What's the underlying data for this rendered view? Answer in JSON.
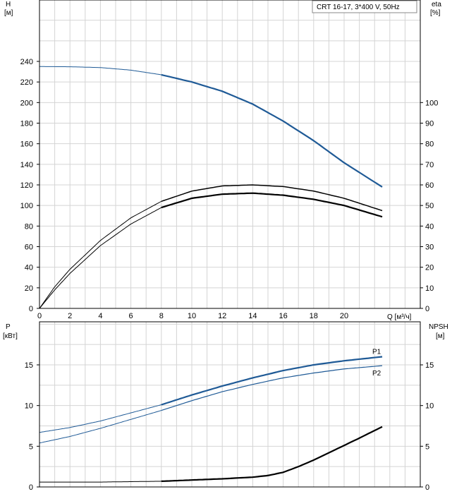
{
  "chart_data": [
    {
      "type": "line",
      "title": "CRT 16-17, 3*400 V, 50Hz",
      "ylabel_left": "H",
      "ylabel_left_unit": "[м]",
      "ylabel_right": "eta",
      "ylabel_right_unit": "[%]",
      "xlabel": "Q [м³/ч]",
      "xlim": [
        0,
        25
      ],
      "ylim_left": [
        0,
        240
      ],
      "ylim_right": [
        0,
        100
      ],
      "x_ticks": [
        0,
        2,
        4,
        6,
        8,
        10,
        12,
        14,
        16,
        18,
        20
      ],
      "y_ticks_left": [
        0,
        20,
        40,
        60,
        80,
        100,
        120,
        140,
        160,
        180,
        200,
        220,
        240
      ],
      "y_ticks_right": [
        0,
        10,
        20,
        30,
        40,
        50,
        60,
        70,
        80,
        90,
        100
      ],
      "grid": true,
      "series": [
        {
          "axis": "left",
          "color": "#1f5a96",
          "x": [
            0,
            2,
            4,
            6,
            8,
            10,
            12,
            14,
            16,
            18,
            20,
            22.5
          ],
          "y": [
            235,
            234.8,
            234,
            231.5,
            227,
            220,
            211,
            198.5,
            182,
            163,
            141.5,
            118
          ]
        },
        {
          "axis": "right",
          "color": "#000000",
          "x": [
            0,
            1,
            2,
            4,
            6,
            8,
            10,
            12,
            14,
            16,
            18,
            20,
            22.5
          ],
          "y": [
            0,
            10.5,
            19,
            33,
            44,
            52,
            57,
            59.5,
            60,
            59.2,
            57,
            53.5,
            47.5
          ]
        },
        {
          "axis": "right",
          "color": "#000000",
          "x": [
            0,
            1,
            2,
            4,
            6,
            8,
            10,
            12,
            14,
            16,
            18,
            20,
            22.5
          ],
          "y": [
            0,
            9,
            17,
            30.5,
            41,
            49,
            53.5,
            55.5,
            56,
            55,
            53,
            50,
            44.5
          ]
        }
      ]
    },
    {
      "type": "line",
      "ylabel_left": "P",
      "ylabel_left_unit": "[кВт]",
      "ylabel_right": "NPSH",
      "ylabel_right_unit": "[м]",
      "xlim": [
        0,
        25
      ],
      "ylim_left": [
        0,
        20
      ],
      "ylim_right": [
        0,
        20
      ],
      "y_ticks_left": [
        0,
        5,
        10,
        15
      ],
      "y_ticks_right": [
        0,
        5,
        10,
        15
      ],
      "grid": true,
      "series": [
        {
          "name": "P1",
          "axis": "left",
          "color": "#1f5a96",
          "x": [
            0,
            2,
            4,
            6,
            8,
            10,
            12,
            14,
            16,
            18,
            20,
            22.5
          ],
          "y": [
            6.7,
            7.3,
            8.1,
            9.1,
            10.1,
            11.3,
            12.4,
            13.4,
            14.3,
            15,
            15.5,
            16
          ]
        },
        {
          "name": "P2",
          "axis": "left",
          "color": "#1f5a96",
          "x": [
            0,
            2,
            4,
            6,
            8,
            10,
            12,
            14,
            16,
            18,
            20,
            22.5
          ],
          "y": [
            5.4,
            6.2,
            7.2,
            8.3,
            9.4,
            10.6,
            11.7,
            12.6,
            13.4,
            14,
            14.5,
            14.9
          ]
        },
        {
          "axis": "right",
          "color": "#000000",
          "x": [
            0,
            4,
            8,
            12,
            14,
            15,
            16,
            17,
            18,
            19,
            20,
            21,
            22.5
          ],
          "y": [
            0.6,
            0.6,
            0.7,
            1,
            1.2,
            1.4,
            1.8,
            2.5,
            3.3,
            4.2,
            5.1,
            6,
            7.4
          ]
        }
      ]
    }
  ]
}
